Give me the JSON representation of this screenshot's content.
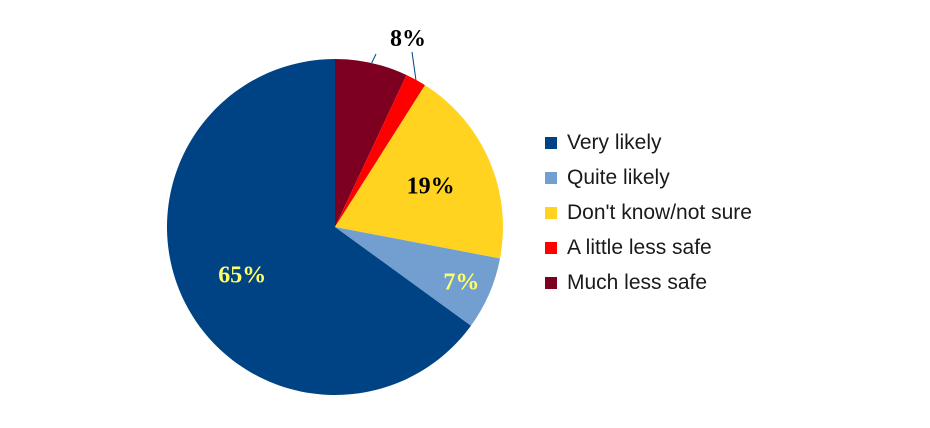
{
  "chart_data": {
    "type": "pie",
    "title": "",
    "categories": [
      "Very likely",
      "Quite likely",
      "Don't know/not sure",
      "A little less safe",
      "Much less safe"
    ],
    "values": [
      65,
      7,
      19,
      2,
      7
    ],
    "colors": [
      "#004385",
      "#729fcf",
      "#ffd320",
      "#ff0000",
      "#7e0021"
    ],
    "data_labels": [
      {
        "text": "65%",
        "color": "#ffff66"
      },
      {
        "text": "7%",
        "color": "#ffff66"
      },
      {
        "text": "19%",
        "color": "#000000"
      },
      {
        "text": "",
        "color": "#000000"
      },
      {
        "text": "",
        "color": "#000000"
      }
    ],
    "combined_label": {
      "text": "8%",
      "color": "#000000"
    },
    "legend_position": "right"
  }
}
